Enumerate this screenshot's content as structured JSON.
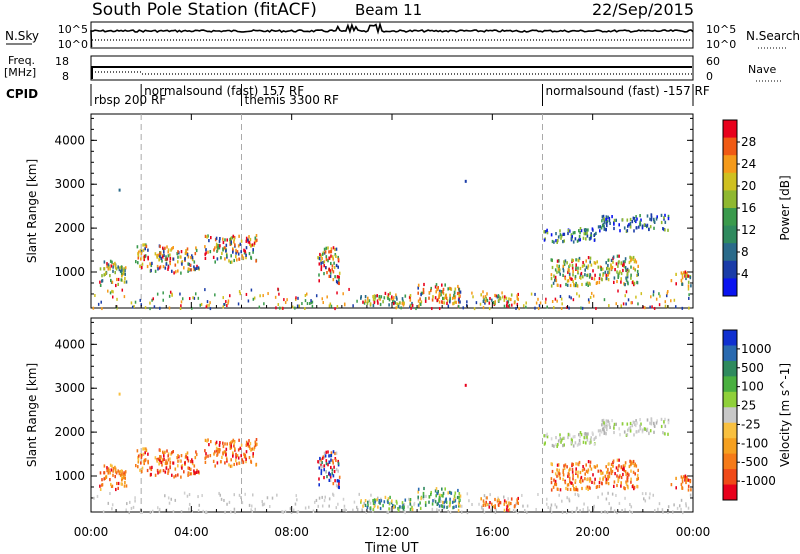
{
  "header": {
    "station": "South Pole Station (fitACF)",
    "beam": "Beam 11",
    "date": "22/Sep/2015"
  },
  "top_panels": {
    "nsky_label": "N.Sky",
    "nsky_ticks": [
      "10^5",
      "10^0"
    ],
    "nsearch_label": "N.Search",
    "nsearch_ticks": [
      "10^5",
      "10^0"
    ],
    "freq_label": "Freq.",
    "freq_unit": "[MHz]",
    "freq_ticks": [
      "18",
      "8"
    ],
    "nave_label": "Nave",
    "nave_ticks": [
      "60",
      "0"
    ],
    "cpid_label": "CPID",
    "cpid_segments": [
      {
        "label": "rbsp 200 RF",
        "start_h": 0,
        "row": 1
      },
      {
        "label": "normalsound (fast) 157 RF",
        "start_h": 2,
        "row": 0
      },
      {
        "label": "themis 3300 RF",
        "start_h": 6,
        "row": 1
      },
      {
        "label": "normalsound (fast) -157 RF",
        "start_h": 18,
        "row": 0
      }
    ],
    "mode_change_hours": [
      2,
      6,
      18
    ]
  },
  "chart_data": [
    {
      "type": "heatmap",
      "name": "power",
      "ylabel": "Slant Range [km]",
      "xlabel": "",
      "xlim": [
        0,
        24
      ],
      "ylim": [
        180,
        4600
      ],
      "y_ticks": [
        "1000",
        "2000",
        "3000",
        "4000"
      ],
      "colorbar": {
        "label": "Power [dB]",
        "ticks": [
          "28",
          "24",
          "20",
          "16",
          "12",
          "8",
          "4"
        ],
        "colors": [
          "#e8001c",
          "#f05a14",
          "#f59a1a",
          "#cfc020",
          "#8fb830",
          "#3a9a4c",
          "#2f8a5e",
          "#2a6a8a",
          "#1a3ca8",
          "#0a14f0"
        ]
      },
      "clusters": [
        {
          "x": [
            0.3,
            1.4
          ],
          "y": [
            700,
            1300
          ],
          "level": "mid"
        },
        {
          "x": [
            1.7,
            3.0
          ],
          "y": [
            1050,
            1700
          ],
          "level": "high"
        },
        {
          "x": [
            3.0,
            4.3
          ],
          "y": [
            1000,
            1600
          ],
          "level": "high"
        },
        {
          "x": [
            4.5,
            6.6
          ],
          "y": [
            1250,
            1900
          ],
          "level": "high"
        },
        {
          "x": [
            9.0,
            9.9
          ],
          "y": [
            750,
            1600
          ],
          "level": "high"
        },
        {
          "x": [
            10.7,
            12.8
          ],
          "y": [
            250,
            550
          ],
          "level": "mid"
        },
        {
          "x": [
            13.0,
            14.7
          ],
          "y": [
            250,
            800
          ],
          "level": "high"
        },
        {
          "x": [
            15.5,
            17.0
          ],
          "y": [
            250,
            550
          ],
          "level": "mid"
        },
        {
          "x": [
            18.0,
            20.1
          ],
          "y": [
            1700,
            2050
          ],
          "level": "low"
        },
        {
          "x": [
            20.2,
            23.0
          ],
          "y": [
            1950,
            2350
          ],
          "level": "low"
        },
        {
          "x": [
            18.3,
            21.8
          ],
          "y": [
            700,
            1400
          ],
          "level": "mid"
        },
        {
          "x": [
            23.1,
            23.9
          ],
          "y": [
            700,
            1050
          ],
          "level": "mid"
        }
      ]
    },
    {
      "type": "heatmap",
      "name": "velocity",
      "ylabel": "Slant Range [km]",
      "xlabel": "Time UT",
      "xlim": [
        0,
        24
      ],
      "ylim": [
        180,
        4600
      ],
      "y_ticks": [
        "1000",
        "2000",
        "3000",
        "4000"
      ],
      "x_ticks": [
        "00:00",
        "04:00",
        "08:00",
        "12:00",
        "16:00",
        "20:00",
        "00:00"
      ],
      "colorbar": {
        "label": "Velocity [m s^-1]",
        "ticks": [
          "1000",
          "500",
          "100",
          "25",
          "-25",
          "-100",
          "-500",
          "-1000"
        ],
        "colors": [
          "#1030d0",
          "#2a6ab0",
          "#2f8a5e",
          "#4ab040",
          "#8fd03a",
          "#c8c8c8",
          "#f8c040",
          "#f5a020",
          "#f57a18",
          "#f04a18",
          "#e8001c"
        ]
      },
      "clusters": [
        {
          "x": [
            0.3,
            1.4
          ],
          "y": [
            700,
            1300
          ],
          "level": "neg"
        },
        {
          "x": [
            1.7,
            3.0
          ],
          "y": [
            1050,
            1700
          ],
          "level": "neg"
        },
        {
          "x": [
            3.0,
            4.3
          ],
          "y": [
            1000,
            1600
          ],
          "level": "neg"
        },
        {
          "x": [
            4.5,
            6.6
          ],
          "y": [
            1250,
            1900
          ],
          "level": "neg"
        },
        {
          "x": [
            9.0,
            9.9
          ],
          "y": [
            750,
            1600
          ],
          "level": "mix"
        },
        {
          "x": [
            10.7,
            12.8
          ],
          "y": [
            250,
            550
          ],
          "level": "pos"
        },
        {
          "x": [
            13.0,
            14.7
          ],
          "y": [
            250,
            800
          ],
          "level": "pos"
        },
        {
          "x": [
            15.5,
            17.0
          ],
          "y": [
            250,
            550
          ],
          "level": "neg"
        },
        {
          "x": [
            18.0,
            20.1
          ],
          "y": [
            1700,
            2050
          ],
          "level": "zero"
        },
        {
          "x": [
            20.2,
            23.0
          ],
          "y": [
            1950,
            2350
          ],
          "level": "zero"
        },
        {
          "x": [
            18.3,
            21.8
          ],
          "y": [
            700,
            1400
          ],
          "level": "neg"
        },
        {
          "x": [
            23.1,
            23.9
          ],
          "y": [
            700,
            1050
          ],
          "level": "neg"
        }
      ]
    }
  ]
}
